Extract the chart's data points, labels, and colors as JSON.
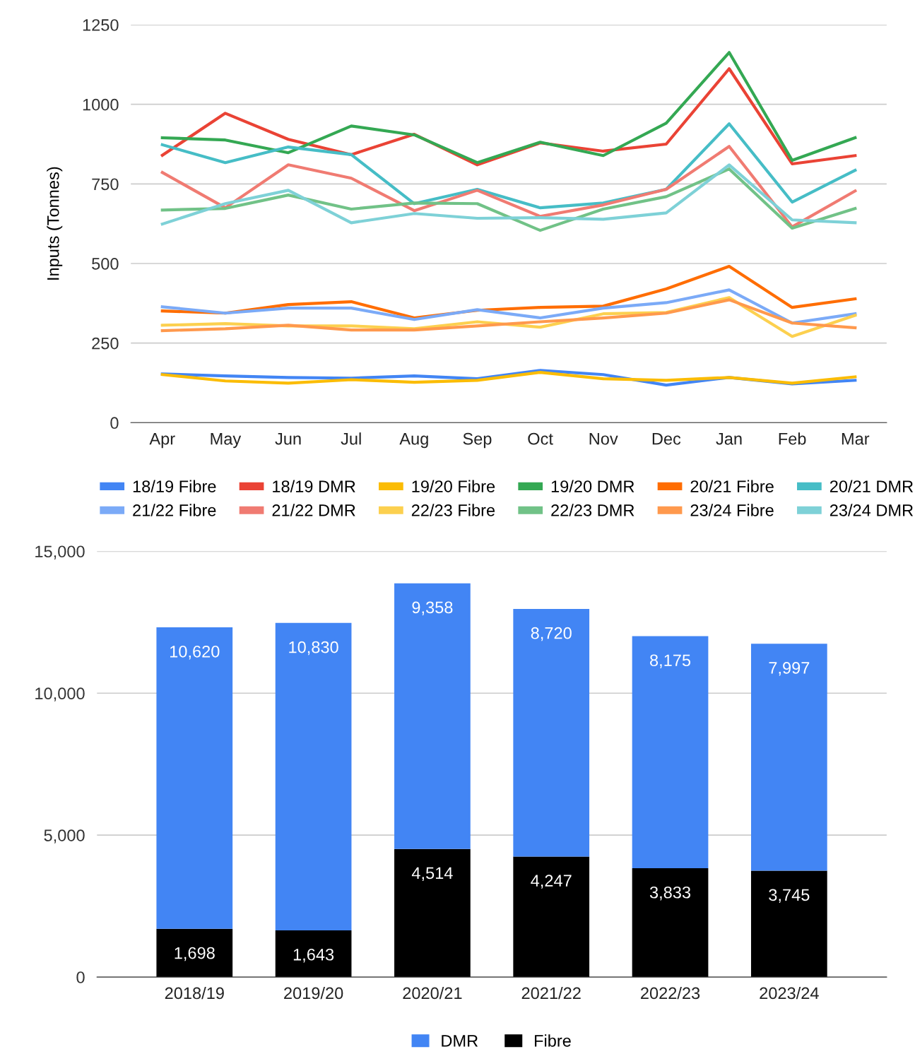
{
  "chart_data": [
    {
      "type": "line",
      "ylabel": "Inputs (Tonnes)",
      "categories": [
        "Apr",
        "May",
        "Jun",
        "Jul",
        "Aug",
        "Sep",
        "Oct",
        "Nov",
        "Dec",
        "Jan",
        "Feb",
        "Mar"
      ],
      "ylim": [
        0,
        1250
      ],
      "yticks": [
        0,
        250,
        500,
        750,
        1000,
        1250
      ],
      "grid": "y",
      "legend": "bottom",
      "marker": "none",
      "line_style": "solid",
      "series": [
        {
          "name": "18/19 Fibre",
          "color": "#4285f4",
          "values": [
            153,
            147,
            142,
            140,
            147,
            138,
            164,
            151,
            118,
            142,
            122,
            133
          ]
        },
        {
          "name": "18/19 DMR",
          "color": "#ea4335",
          "values": [
            840,
            972,
            890,
            842,
            906,
            810,
            879,
            853,
            875,
            1112,
            813,
            839
          ]
        },
        {
          "name": "19/20 Fibre",
          "color": "#fbbc04",
          "values": [
            151,
            131,
            124,
            135,
            127,
            133,
            158,
            138,
            133,
            142,
            124,
            144
          ]
        },
        {
          "name": "19/20 DMR",
          "color": "#34a853",
          "values": [
            895,
            888,
            848,
            932,
            904,
            817,
            881,
            839,
            941,
            1163,
            824,
            895
          ]
        },
        {
          "name": "20/21 Fibre",
          "color": "#ff6d01",
          "values": [
            351,
            344,
            371,
            380,
            329,
            353,
            362,
            366,
            420,
            491,
            362,
            389
          ]
        },
        {
          "name": "20/21 DMR",
          "color": "#46bdc6",
          "values": [
            873,
            817,
            866,
            842,
            688,
            733,
            675,
            690,
            733,
            939,
            693,
            793
          ]
        },
        {
          "name": "21/22 Fibre",
          "color": "#7baaf7",
          "values": [
            364,
            344,
            360,
            360,
            324,
            355,
            329,
            360,
            377,
            417,
            313,
            342
          ]
        },
        {
          "name": "21/22 DMR",
          "color": "#f07b72",
          "values": [
            786,
            675,
            810,
            768,
            666,
            730,
            648,
            684,
            733,
            868,
            615,
            728
          ]
        },
        {
          "name": "22/23 Fibre",
          "color": "#fcd04f",
          "values": [
            306,
            311,
            304,
            304,
            295,
            317,
            300,
            342,
            346,
            393,
            271,
            337
          ]
        },
        {
          "name": "22/23 DMR",
          "color": "#71c287",
          "values": [
            668,
            673,
            715,
            671,
            690,
            688,
            604,
            671,
            710,
            797,
            611,
            673
          ]
        },
        {
          "name": "23/24 Fibre",
          "color": "#ff994d",
          "values": [
            289,
            295,
            306,
            291,
            291,
            304,
            317,
            329,
            344,
            386,
            313,
            298
          ]
        },
        {
          "name": "23/24 DMR",
          "color": "#7ed1d7",
          "values": [
            624,
            688,
            730,
            628,
            657,
            642,
            644,
            639,
            659,
            810,
            637,
            628
          ]
        }
      ]
    },
    {
      "type": "bar",
      "stacked": true,
      "categories": [
        "2018/19",
        "2019/20",
        "2020/21",
        "2021/22",
        "2022/23",
        "2023/24"
      ],
      "ylim": [
        0,
        15000
      ],
      "yticks": [
        0,
        {
          "value": 5000,
          "label": "5,000"
        },
        {
          "value": 10000,
          "label": "10,000"
        },
        {
          "value": 15000,
          "label": "15,000"
        }
      ],
      "grid": "y",
      "legend": "bottom",
      "series": [
        {
          "name": "Fibre",
          "color": "#000000",
          "values": [
            1698,
            1643,
            4514,
            4247,
            3833,
            3745
          ],
          "value_labels": [
            "1,698",
            "1,643",
            "4,514",
            "4,247",
            "3,833",
            "3,745"
          ]
        },
        {
          "name": "DMR",
          "color": "#4285f4",
          "values": [
            10620,
            10830,
            9358,
            8720,
            8175,
            7997
          ],
          "value_labels": [
            "10,620",
            "10,830",
            "9,358",
            "8,720",
            "8,175",
            "7,997"
          ]
        }
      ]
    }
  ]
}
